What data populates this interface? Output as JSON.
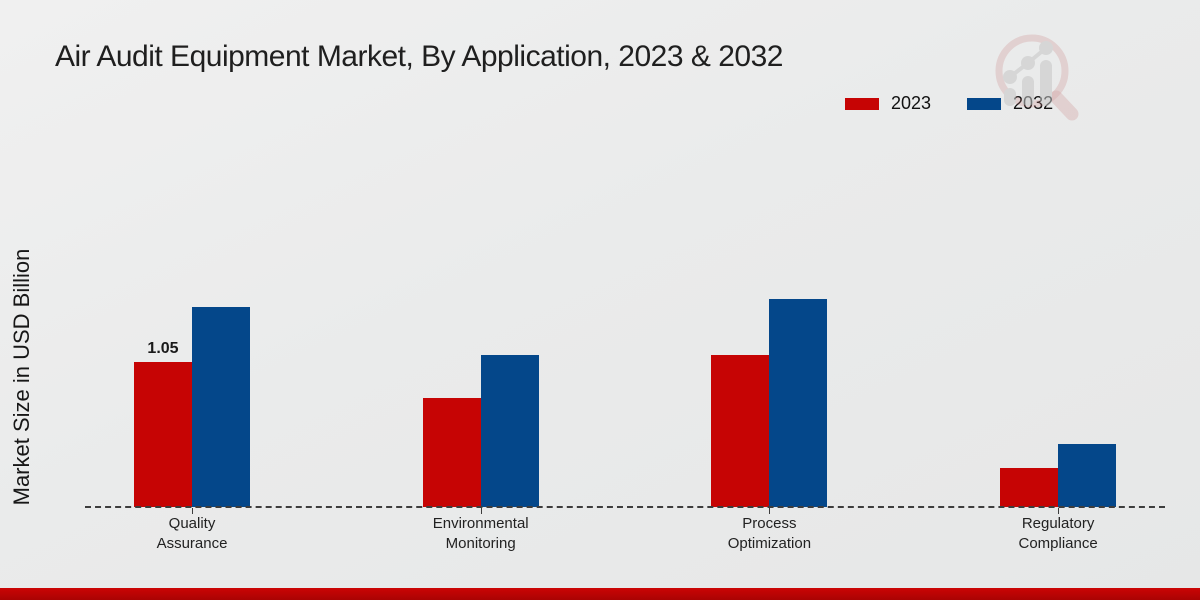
{
  "title": "Air Audit Equipment Market, By Application, 2023 & 2032",
  "ylabel": "Market Size in USD Billion",
  "legend": {
    "entries": [
      {
        "label": "2023",
        "color": "#c60404"
      },
      {
        "label": "2032",
        "color": "#04478a"
      }
    ]
  },
  "watermark": {
    "icon": "magnifier-bar-chart-logo"
  },
  "chart_data": {
    "type": "bar",
    "title": "Air Audit Equipment Market, By Application, 2023 & 2032",
    "xlabel": "",
    "ylabel": "Market Size in USD Billion",
    "categories": [
      "Quality\nAssurance",
      "Environmental\nMonitoring",
      "Process\nOptimization",
      "Regulatory\nCompliance"
    ],
    "series": [
      {
        "name": "2023",
        "color": "#c60404",
        "values": [
          1.05,
          0.79,
          1.1,
          0.28
        ]
      },
      {
        "name": "2032",
        "color": "#04478a",
        "values": [
          1.45,
          1.1,
          1.51,
          0.46
        ]
      }
    ],
    "data_labels": [
      {
        "series_index": 0,
        "category_index": 0,
        "text": "1.05"
      }
    ],
    "ylim": [
      0,
      1.6
    ],
    "grid": false,
    "axis_line_style": "dashed",
    "legend_position": "top-right"
  },
  "colors": {
    "series_2023": "#c60404",
    "series_2032": "#04478a",
    "axis": "#3d3d3d",
    "background": "#eaebeb",
    "bottom_strip": "#c00505",
    "text": "#1f1f1f"
  }
}
